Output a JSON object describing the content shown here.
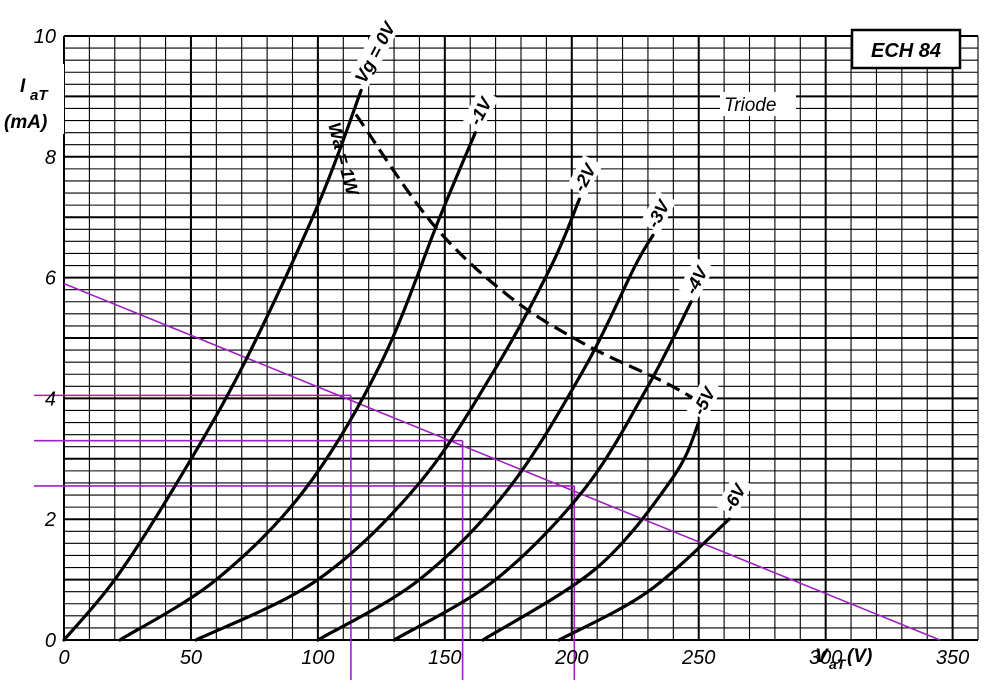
{
  "chart_data": {
    "type": "line",
    "title": "ECH 84",
    "subtitle": "Triode",
    "xlabel_main": "V",
    "xlabel_sub": "aT",
    "xlabel_unit": "(V)",
    "ylabel_main": "I",
    "ylabel_sub": "aT",
    "ylabel_unit": "(mA)",
    "xlim": [
      0,
      360
    ],
    "ylim": [
      0,
      10
    ],
    "x_ticks": [
      "0",
      "50",
      "100",
      "150",
      "200",
      "250",
      "300",
      "350"
    ],
    "y_ticks": [
      "0",
      "2",
      "4",
      "6",
      "8",
      "10"
    ],
    "grid": true,
    "series": [
      {
        "name": "Vg = 0V",
        "points": [
          [
            0,
            0
          ],
          [
            20,
            1
          ],
          [
            43,
            2.5
          ],
          [
            70,
            4.5
          ],
          [
            100,
            7.2
          ],
          [
            117,
            9.1
          ]
        ]
      },
      {
        "name": "-1V",
        "points": [
          [
            22,
            0
          ],
          [
            60,
            1
          ],
          [
            95,
            2.5
          ],
          [
            125,
            4.6
          ],
          [
            148,
            7.0
          ],
          [
            162,
            8.4
          ]
        ]
      },
      {
        "name": "-2V",
        "points": [
          [
            52,
            0
          ],
          [
            100,
            1
          ],
          [
            140,
            2.6
          ],
          [
            170,
            4.5
          ],
          [
            192,
            6.2
          ],
          [
            203,
            7.3
          ]
        ]
      },
      {
        "name": "-3V",
        "points": [
          [
            100,
            0
          ],
          [
            140,
            1
          ],
          [
            175,
            2.5
          ],
          [
            205,
            4.5
          ],
          [
            225,
            6.2
          ],
          [
            232,
            6.7
          ]
        ]
      },
      {
        "name": "-4V",
        "points": [
          [
            130,
            0
          ],
          [
            170,
            1
          ],
          [
            205,
            2.5
          ],
          [
            230,
            4.2
          ],
          [
            247,
            5.6
          ]
        ]
      },
      {
        "name": "-5V",
        "points": [
          [
            165,
            0
          ],
          [
            210,
            1.2
          ],
          [
            240,
            2.7
          ],
          [
            250,
            3.6
          ]
        ]
      },
      {
        "name": "-6V",
        "points": [
          [
            195,
            0
          ],
          [
            230,
            0.8
          ],
          [
            262,
            2.0
          ]
        ]
      }
    ],
    "dissipation_curve": {
      "name": "Wa = 1W",
      "points": [
        [
          115,
          8.7
        ],
        [
          145,
          6.9
        ],
        [
          175,
          5.7
        ],
        [
          205,
          4.9
        ],
        [
          235,
          4.3
        ],
        [
          248,
          4.0
        ]
      ]
    },
    "load_line": {
      "points": [
        [
          0,
          5.9
        ],
        [
          345,
          0
        ]
      ]
    },
    "operating_points": [
      {
        "vg": "-1V",
        "x": 113,
        "y": 4.05
      },
      {
        "vg": "-2V",
        "x": 157,
        "y": 3.3
      },
      {
        "vg": "-3V",
        "x": 201,
        "y": 2.55
      }
    ]
  },
  "colors": {
    "grid": "#000000",
    "curve": "#000000",
    "load": "#a020c0"
  }
}
